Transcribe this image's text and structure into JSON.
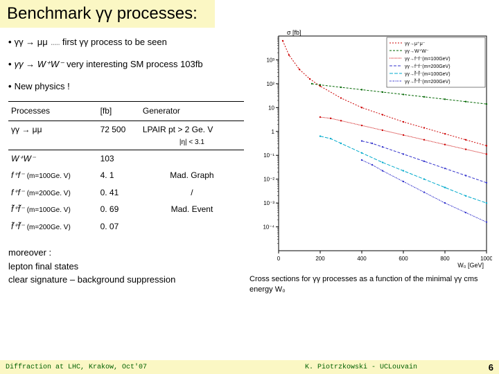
{
  "title": "Benchmark γγ processes:",
  "bullets": [
    {
      "expr": "γγ → μμ",
      "note": "first γγ process to be seen"
    },
    {
      "expr": "γγ → W⁺W⁻",
      "note": "very interesting SM process 103fb"
    },
    {
      "expr": "New physics !",
      "note": ""
    }
  ],
  "table": {
    "headers": [
      "Processes",
      "[fb]",
      "Generator"
    ],
    "first_row": {
      "proc": "γγ → μμ",
      "fb": "72 500",
      "gen": "LPAIR pt > 2 Ge. V",
      "gen2": "|η| < 3.1"
    },
    "rows": [
      {
        "proc": "W⁺W⁻",
        "mass": "",
        "fb": "103",
        "gen": ""
      },
      {
        "proc": "f⁺f⁻",
        "mass": "(m=100Ge. V)",
        "fb": "4. 1",
        "gen": "Mad. Graph"
      },
      {
        "proc": "f⁺f⁻",
        "mass": "(m=200Ge. V)",
        "fb": "0. 41",
        "gen": "/"
      },
      {
        "proc": "f̃⁺f̃⁻",
        "mass": "(m=100Ge. V)",
        "fb": "0. 69",
        "gen": "Mad. Event"
      },
      {
        "proc": "f̃⁺f̃⁻",
        "mass": "(m=200Ge. V)",
        "fb": "0. 07",
        "gen": ""
      }
    ]
  },
  "bottom": {
    "l1": "moreover :",
    "l2": "lepton final states",
    "l3": "clear signature – background suppression"
  },
  "caption": "Cross sections for γγ processes as a function of the minimal γγ cms energy W₀",
  "chart": {
    "ylabel": "σ [fb]",
    "xlabel": "W₀ [GeV]",
    "ylim_log": [
      -5,
      4
    ],
    "xlim": [
      0,
      1000
    ],
    "xticks": [
      0,
      200,
      400,
      600,
      800,
      1000
    ],
    "ytick_logs": [
      -4,
      -3,
      -2,
      -1,
      0,
      1,
      2,
      3
    ],
    "ytick_labels": [
      "10⁻⁴",
      "10⁻³",
      "10⁻²",
      "10⁻¹",
      "1",
      "10",
      "10²",
      "10³"
    ],
    "grid_color": "#cccccc",
    "background": "#ffffff",
    "axis_color": "#000000",
    "label_fontsize": 9,
    "tick_fontsize": 8,
    "legend_fontsize": 7,
    "legend": [
      {
        "label": "γγ→μ⁺μ⁻",
        "color": "#cc0000",
        "dash": "2,2"
      },
      {
        "label": "γγ→W⁺W⁻",
        "color": "#006600",
        "dash": "3,2"
      },
      {
        "label": "γγ→f⁺f⁻(m=100GeV)",
        "color": "#cc0000",
        "dash": "1,1"
      },
      {
        "label": "γγ→f⁺f⁻(m=200GeV)",
        "color": "#3333cc",
        "dash": "4,2"
      },
      {
        "label": "γγ→f̃⁺f̃⁻(m=100GeV)",
        "color": "#00aacc",
        "dash": "5,2"
      },
      {
        "label": "γγ→f̃⁺f̃⁻(m=200GeV)",
        "color": "#3333cc",
        "dash": "2,1,1,1"
      }
    ],
    "series": [
      {
        "name": "mumu",
        "color": "#cc0000",
        "dash": "2,2",
        "pts": [
          [
            20,
            3.8
          ],
          [
            50,
            3.2
          ],
          [
            100,
            2.6
          ],
          [
            150,
            2.2
          ],
          [
            200,
            1.9
          ],
          [
            300,
            1.4
          ],
          [
            400,
            1.0
          ],
          [
            500,
            0.7
          ],
          [
            600,
            0.4
          ],
          [
            700,
            0.15
          ],
          [
            800,
            -0.1
          ],
          [
            900,
            -0.35
          ],
          [
            1000,
            -0.6
          ]
        ]
      },
      {
        "name": "ww",
        "color": "#006600",
        "dash": "3,2",
        "pts": [
          [
            160,
            2.0
          ],
          [
            200,
            1.95
          ],
          [
            300,
            1.85
          ],
          [
            400,
            1.75
          ],
          [
            500,
            1.65
          ],
          [
            600,
            1.55
          ],
          [
            700,
            1.45
          ],
          [
            800,
            1.35
          ],
          [
            900,
            1.25
          ],
          [
            1000,
            1.15
          ]
        ]
      },
      {
        "name": "ff100",
        "color": "#cc0000",
        "dash": "1,1",
        "pts": [
          [
            200,
            0.6
          ],
          [
            250,
            0.55
          ],
          [
            300,
            0.45
          ],
          [
            400,
            0.25
          ],
          [
            500,
            0.05
          ],
          [
            600,
            -0.15
          ],
          [
            700,
            -0.35
          ],
          [
            800,
            -0.55
          ],
          [
            900,
            -0.75
          ],
          [
            1000,
            -0.95
          ]
        ]
      },
      {
        "name": "ff200",
        "color": "#3333cc",
        "dash": "4,2",
        "pts": [
          [
            400,
            -0.4
          ],
          [
            450,
            -0.5
          ],
          [
            500,
            -0.65
          ],
          [
            600,
            -0.95
          ],
          [
            700,
            -1.25
          ],
          [
            800,
            -1.55
          ],
          [
            900,
            -1.85
          ],
          [
            1000,
            -2.15
          ]
        ]
      },
      {
        "name": "sff100",
        "color": "#00aacc",
        "dash": "5,2",
        "pts": [
          [
            200,
            -0.2
          ],
          [
            250,
            -0.3
          ],
          [
            300,
            -0.5
          ],
          [
            400,
            -0.9
          ],
          [
            500,
            -1.3
          ],
          [
            600,
            -1.65
          ],
          [
            700,
            -2.0
          ],
          [
            800,
            -2.35
          ],
          [
            900,
            -2.7
          ],
          [
            1000,
            -3.0
          ]
        ]
      },
      {
        "name": "sff200",
        "color": "#3333cc",
        "dash": "2,1,1,1",
        "pts": [
          [
            400,
            -1.2
          ],
          [
            450,
            -1.4
          ],
          [
            500,
            -1.65
          ],
          [
            600,
            -2.1
          ],
          [
            700,
            -2.55
          ],
          [
            800,
            -3.0
          ],
          [
            900,
            -3.4
          ],
          [
            1000,
            -3.8
          ]
        ]
      }
    ]
  },
  "footer": {
    "left": "Diffraction at LHC, Krakow, Oct'07",
    "center": "K. Piotrzkowski - UCLouvain",
    "page": "6"
  }
}
